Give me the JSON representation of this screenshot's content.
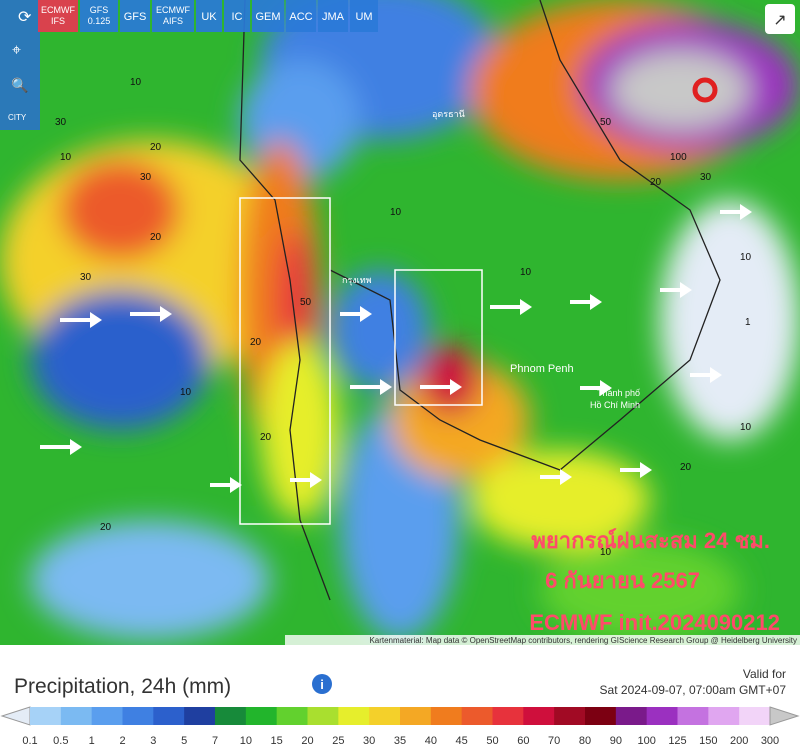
{
  "models": [
    "ECMWF IFS",
    "GFS 0.125",
    "GFS",
    "ECMWF AIFS",
    "UK",
    "IC",
    "GEM",
    "ACC",
    "JMA",
    "UM"
  ],
  "tools": {
    "city": "CITY"
  },
  "overlay": {
    "line1": "พยากรณ์ฝนสะสม 24 ชม.",
    "line2": "6 กันยายน 2567",
    "line3": "ECMWF init.2024090212"
  },
  "places": [
    "Phnom Penh",
    "Thành phố",
    "Hồ Chí Minh",
    "กรุงเทพ",
    "อุดรธานี"
  ],
  "contours": [
    "10",
    "20",
    "30",
    "10",
    "20",
    "30",
    "50",
    "20",
    "10",
    "20",
    "30",
    "10",
    "10",
    "20",
    "100",
    "50",
    "30",
    "10",
    "20",
    "10",
    "1",
    "20",
    "10"
  ],
  "attribution": "Kartenmaterial: Map data © OpenStreetMap contributors, rendering GIScience Research Group @ Heidelberg University",
  "legend": {
    "title": "Precipitation, 24h (mm)",
    "valid_label": "Valid for",
    "valid_time": "Sat 2024-09-07, 07:00am GMT+07",
    "labels": [
      "0.1",
      "0.5",
      "1",
      "2",
      "3",
      "5",
      "7",
      "10",
      "15",
      "20",
      "25",
      "30",
      "35",
      "40",
      "45",
      "50",
      "60",
      "70",
      "80",
      "90",
      "100",
      "125",
      "150",
      "200",
      "300"
    ],
    "colors": [
      "#e4ecf6",
      "#a6d2f7",
      "#7bbaf2",
      "#5a9eee",
      "#3f80e2",
      "#2c60cc",
      "#1f3fa0",
      "#178a3a",
      "#22b52c",
      "#62d12e",
      "#a9df2f",
      "#e6ee2c",
      "#f4d02a",
      "#f4a824",
      "#f07c1e",
      "#ec5a2c",
      "#e7323c",
      "#cf0f3c",
      "#a10a24",
      "#7c0012",
      "#7a1a8a",
      "#9b30c0",
      "#c472e0",
      "#e0a6f0",
      "#f2d4f8",
      "#c8c8c8"
    ]
  }
}
